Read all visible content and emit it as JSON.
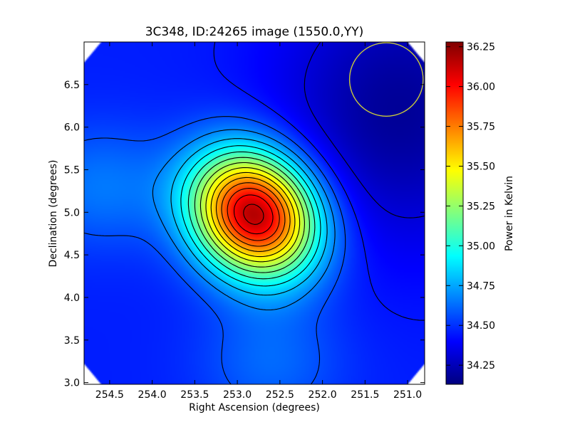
{
  "chart_data": {
    "type": "heatmap",
    "title": "3C348, ID:24265 image (1550.0,YY)",
    "xlabel": "Right Ascension (degrees)",
    "ylabel": "Declination (degrees)",
    "xlim": [
      254.8,
      250.8
    ],
    "ylim": [
      2.98,
      7.0
    ],
    "x_ticks": [
      "254.5",
      "254.0",
      "253.5",
      "253.0",
      "252.5",
      "252.0",
      "251.5",
      "251.0"
    ],
    "y_ticks": [
      "3.0",
      "3.5",
      "4.0",
      "4.5",
      "5.0",
      "5.5",
      "6.0",
      "6.5"
    ],
    "colorbar": {
      "label": "Power in Kelvin",
      "range": [
        34.13,
        36.28
      ],
      "ticks": [
        "34.25",
        "34.50",
        "34.75",
        "35.00",
        "35.25",
        "35.50",
        "35.75",
        "36.00",
        "36.25"
      ],
      "colormap": "jet"
    },
    "peak": {
      "ra": 252.8,
      "dec": 4.98,
      "value": 36.2
    },
    "secondary_brightening": [
      {
        "ra": 254.6,
        "dec": 5.3,
        "value": 34.65
      },
      {
        "ra": 252.6,
        "dec": 3.25,
        "value": 34.62
      }
    ],
    "cold_region": {
      "ra": 251.1,
      "dec": 6.2,
      "value": 34.18
    },
    "beam_circle": {
      "ra": 251.25,
      "dec": 6.56,
      "radius_deg": 0.36,
      "color": "#c8c83c"
    },
    "contours": {
      "color": "#000000",
      "levels_approx": 16
    }
  }
}
